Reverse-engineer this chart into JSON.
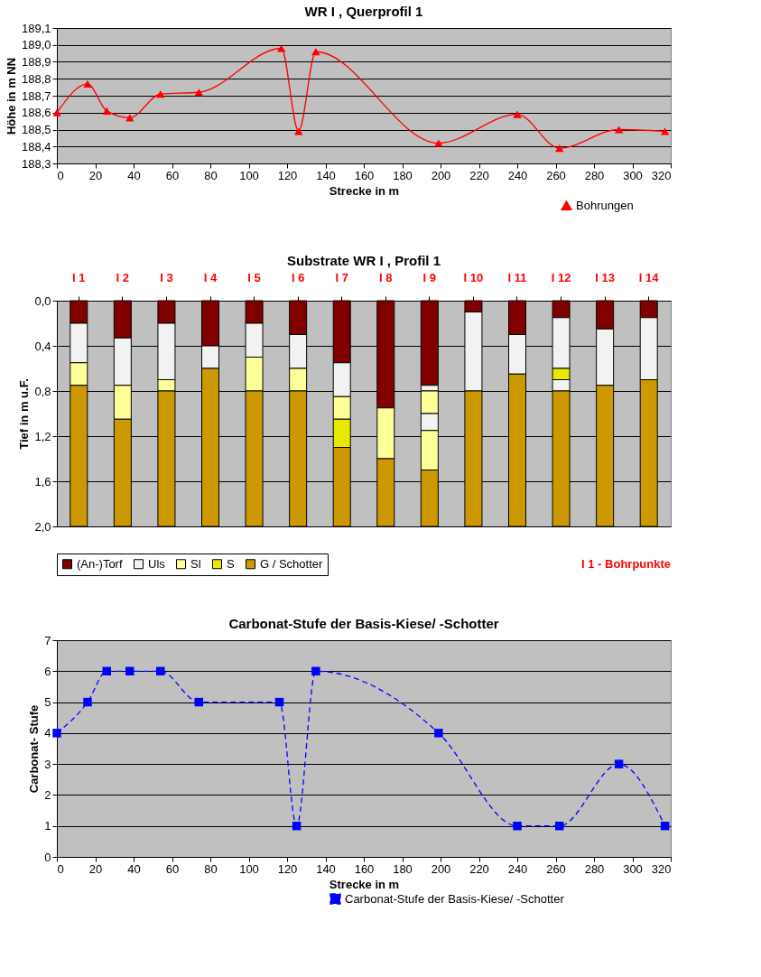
{
  "chart_data": [
    {
      "type": "line",
      "title": "WR I , Querprofil 1",
      "xlabel": "Strecke in m",
      "ylabel": "Höhe in m NN",
      "x": [
        0,
        16,
        26,
        38,
        54,
        74,
        117,
        126,
        135,
        199,
        240,
        262,
        293,
        317
      ],
      "xlim": [
        0,
        320
      ],
      "xticks": [
        0,
        20,
        40,
        60,
        80,
        100,
        120,
        140,
        160,
        180,
        200,
        220,
        240,
        260,
        280,
        300,
        320
      ],
      "ylim": [
        188.3,
        189.1
      ],
      "yticks": [
        {
          "value": 188.3,
          "label": "188,3"
        },
        {
          "value": 188.4,
          "label": "188,4"
        },
        {
          "value": 188.5,
          "label": "188,5"
        },
        {
          "value": 188.6,
          "label": "188,6"
        },
        {
          "value": 188.7,
          "label": "188,7"
        },
        {
          "value": 188.8,
          "label": "188,8"
        },
        {
          "value": 188.9,
          "label": "188,9"
        },
        {
          "value": 189.0,
          "label": "189,0"
        },
        {
          "value": 189.1,
          "label": "189,1"
        }
      ],
      "grid": "y",
      "legend": "bottom right",
      "marker": "triangle",
      "line_style": "solid",
      "series": [
        {
          "name": "Bohrungen",
          "color": "#ff0000",
          "values": [
            188.6,
            188.77,
            188.61,
            188.57,
            188.71,
            188.72,
            188.98,
            188.49,
            188.96,
            188.42,
            188.59,
            188.39,
            188.5,
            188.49
          ]
        }
      ]
    },
    {
      "type": "bar",
      "stacked": true,
      "title": "Substrate WR I , Profil 1",
      "ylabel": "Tief in m u.F.",
      "categories": [
        "I 1",
        "I 2",
        "I 3",
        "I 4",
        "I 5",
        "I 6",
        "I 7",
        "I 8",
        "I 9",
        "I 10",
        "I 11",
        "I 12",
        "I 13",
        "I 14"
      ],
      "ylim": [
        2.0,
        0.0
      ],
      "yticks": [
        {
          "value": 0.0,
          "label": "0,0"
        },
        {
          "value": 0.4,
          "label": "0,4"
        },
        {
          "value": 0.8,
          "label": "0,8"
        },
        {
          "value": 1.2,
          "label": "1,2"
        },
        {
          "value": 1.6,
          "label": "1,6"
        },
        {
          "value": 2.0,
          "label": "2,0"
        }
      ],
      "grid": "y",
      "legend": "bottom left",
      "annotations": [
        "I 1 - Bohrpunkte"
      ],
      "series": [
        {
          "name": "(An-)Torf",
          "color": "#800000",
          "values": [
            0.2,
            0.33,
            0.2,
            0.4,
            0.2,
            0.3,
            0.55,
            0.95,
            0.75,
            0.1,
            0.3,
            0.15,
            0.25,
            0.15
          ]
        },
        {
          "name": "Uls",
          "color": "#f2f2f2",
          "values": [
            0.35,
            0.42,
            0.5,
            0.2,
            0.3,
            0.3,
            0.3,
            null,
            0.05,
            0.7,
            0.35,
            0.45,
            0.5,
            0.55
          ]
        },
        {
          "name": "Sl",
          "color": "#ffff99",
          "values": [
            0.2,
            0.3,
            0.1,
            null,
            0.3,
            0.2,
            0.2,
            0.45,
            0.2,
            null,
            null,
            null,
            null,
            null
          ]
        },
        {
          "name": "S",
          "color": "#e8e800",
          "values": [
            null,
            null,
            null,
            null,
            null,
            null,
            0.25,
            null,
            null,
            null,
            null,
            0.1,
            null,
            null
          ]
        },
        {
          "color": "#f2f2f2",
          "values": [
            null,
            null,
            null,
            null,
            null,
            null,
            null,
            null,
            0.15,
            null,
            null,
            0.1,
            null,
            null
          ]
        },
        {
          "color": "#ffff99",
          "values": [
            null,
            null,
            null,
            null,
            null,
            null,
            null,
            null,
            0.35,
            null,
            null,
            null,
            null,
            null
          ]
        },
        {
          "name": "G / Schotter",
          "color": "#cc9900",
          "values": [
            1.25,
            0.95,
            1.2,
            1.4,
            1.2,
            1.2,
            0.7,
            0.6,
            0.5,
            1.2,
            1.35,
            1.2,
            1.25,
            1.3
          ]
        }
      ]
    },
    {
      "type": "line",
      "title": "Carbonat-Stufe der Basis-Kiese/ -Schotter",
      "xlabel": "Strecke in m",
      "ylabel": "Carbonat- Stufe",
      "x": [
        0,
        16,
        26,
        38,
        54,
        74,
        116,
        125,
        135,
        199,
        240,
        262,
        293,
        317
      ],
      "xlim": [
        0,
        320
      ],
      "xticks": [
        0,
        20,
        40,
        60,
        80,
        100,
        120,
        140,
        160,
        180,
        200,
        220,
        240,
        260,
        280,
        300,
        320
      ],
      "ylim": [
        0,
        7
      ],
      "yticks": [
        0,
        1,
        2,
        3,
        4,
        5,
        6,
        7
      ],
      "grid": "y",
      "legend": "bottom right",
      "marker": "square",
      "line_style": "dashed",
      "series": [
        {
          "name": "Carbonat-Stufe der Basis-Kiese/ -Schotter",
          "color": "#0000ff",
          "values": [
            4,
            5,
            6,
            6,
            6,
            5,
            5,
            1,
            6,
            4,
            1,
            1,
            3,
            1
          ]
        }
      ]
    }
  ]
}
